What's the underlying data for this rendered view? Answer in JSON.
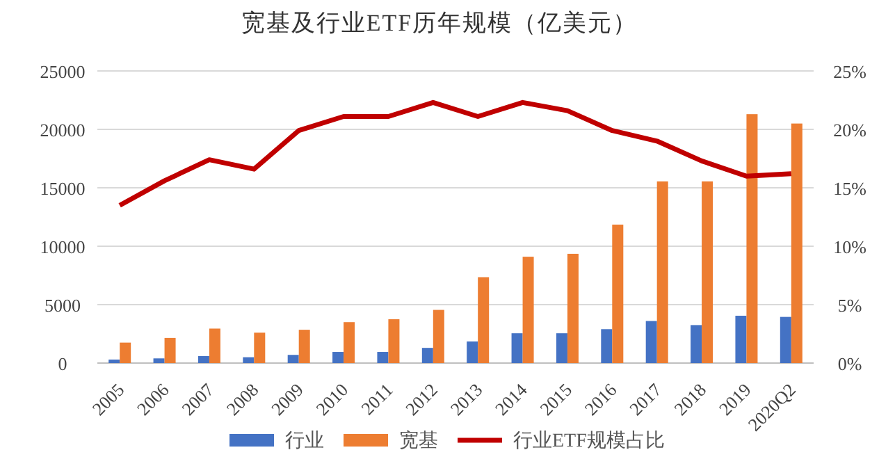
{
  "chart_data": {
    "type": "bar",
    "title": "宽基及行业ETF历年规模（亿美元）",
    "categories": [
      "2005",
      "2006",
      "2007",
      "2008",
      "2009",
      "2010",
      "2011",
      "2012",
      "2013",
      "2014",
      "2015",
      "2016",
      "2017",
      "2018",
      "2019",
      "2020Q2"
    ],
    "series": [
      {
        "name": "行业",
        "color": "#4472c4",
        "values": [
          300,
          400,
          600,
          500,
          700,
          950,
          950,
          1300,
          1850,
          2550,
          2550,
          2900,
          3600,
          3250,
          4050,
          3950
        ]
      },
      {
        "name": "宽基",
        "color": "#ed7d31",
        "values": [
          1750,
          2150,
          2950,
          2600,
          2850,
          3500,
          3750,
          4550,
          7350,
          9100,
          9350,
          11850,
          15550,
          15550,
          21300,
          20500
        ]
      },
      {
        "name": "行业ETF规模占比",
        "type": "line",
        "axis": "y2",
        "color": "#c00000",
        "values": [
          13.5,
          15.6,
          17.4,
          16.6,
          19.9,
          21.1,
          21.1,
          22.3,
          21.1,
          22.3,
          21.6,
          19.9,
          19.0,
          17.3,
          16.0,
          16.2
        ]
      }
    ],
    "ylim": [
      0,
      25000
    ],
    "yticks": [
      0,
      5000,
      10000,
      15000,
      20000,
      25000
    ],
    "y2lim": [
      0,
      25
    ],
    "y2ticks": [
      {
        "value": 0,
        "label": "0%"
      },
      {
        "value": 5,
        "label": "5%"
      },
      {
        "value": 10,
        "label": "10%"
      },
      {
        "value": 15,
        "label": "15%"
      },
      {
        "value": 20,
        "label": "20%"
      },
      {
        "value": 25,
        "label": "25%"
      }
    ],
    "grid": "y",
    "legend": "bottom",
    "marker": "none"
  }
}
